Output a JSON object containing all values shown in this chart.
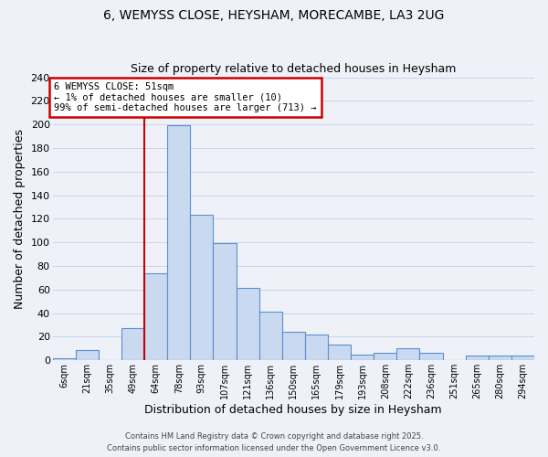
{
  "title1": "6, WEMYSS CLOSE, HEYSHAM, MORECAMBE, LA3 2UG",
  "title2": "Size of property relative to detached houses in Heysham",
  "xlabel": "Distribution of detached houses by size in Heysham",
  "ylabel": "Number of detached properties",
  "bar_labels": [
    "6sqm",
    "21sqm",
    "35sqm",
    "49sqm",
    "64sqm",
    "78sqm",
    "93sqm",
    "107sqm",
    "121sqm",
    "136sqm",
    "150sqm",
    "165sqm",
    "179sqm",
    "193sqm",
    "208sqm",
    "222sqm",
    "236sqm",
    "251sqm",
    "265sqm",
    "280sqm",
    "294sqm"
  ],
  "bar_heights": [
    2,
    9,
    0,
    27,
    74,
    199,
    123,
    99,
    61,
    41,
    24,
    22,
    13,
    5,
    6,
    10,
    6,
    0,
    4,
    4,
    4
  ],
  "bar_color": "#c9d9f0",
  "bar_edge_color": "#5b8fcc",
  "ylim": [
    0,
    240
  ],
  "yticks": [
    0,
    20,
    40,
    60,
    80,
    100,
    120,
    140,
    160,
    180,
    200,
    220,
    240
  ],
  "grid_color": "#c8d4e8",
  "bg_color": "#eef2f8",
  "red_line_bar_index": 3.5,
  "annotation_text_line1": "6 WEMYSS CLOSE: 51sqm",
  "annotation_text_line2": "← 1% of detached houses are smaller (10)",
  "annotation_text_line3": "99% of semi-detached houses are larger (713) →",
  "footer1": "Contains HM Land Registry data © Crown copyright and database right 2025.",
  "footer2": "Contains public sector information licensed under the Open Government Licence v3.0.",
  "annotation_box_color": "#ffffff",
  "annotation_box_edge_color": "#cc0000",
  "red_line_color": "#cc0000"
}
